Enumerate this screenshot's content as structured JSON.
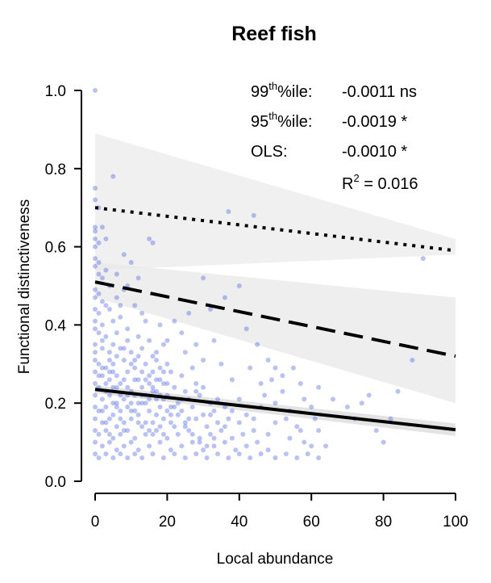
{
  "chart_data": {
    "type": "scatter",
    "title": "Reef fish",
    "xlabel": "Local abundance",
    "ylabel": "Functional distinctiveness",
    "xlim": [
      0,
      100
    ],
    "ylim": [
      0,
      1.0
    ],
    "x_ticks": [
      0,
      20,
      40,
      60,
      80,
      100
    ],
    "y_ticks": [
      "0.0",
      "0.2",
      "0.4",
      "0.6",
      "0.8",
      "1.0"
    ],
    "grid": false,
    "point_color": "#3a4fe0",
    "fit_lines": [
      {
        "name": "99th percentile",
        "style": "dotted",
        "x": [
          0,
          100
        ],
        "y": [
          0.7,
          0.59
        ],
        "band": {
          "x": [
            0,
            100
          ],
          "upper": [
            0.89,
            0.62
          ],
          "lower": [
            0.54,
            0.58
          ]
        }
      },
      {
        "name": "95th percentile",
        "style": "dashed",
        "x": [
          0,
          100
        ],
        "y": [
          0.51,
          0.32
        ],
        "band": {
          "x": [
            0,
            100
          ],
          "upper": [
            0.56,
            0.47
          ],
          "lower": [
            0.47,
            0.2
          ]
        }
      },
      {
        "name": "OLS",
        "style": "solid",
        "x": [
          0,
          100
        ],
        "y": [
          0.235,
          0.132
        ],
        "band": {
          "x": [
            0,
            100
          ],
          "upper": [
            0.245,
            0.148
          ],
          "lower": [
            0.225,
            0.116
          ]
        }
      }
    ],
    "annotations": {
      "p99": {
        "label_base": "99",
        "label_sup": "th",
        "label_rest": "%ile:",
        "value": "-0.0011 ns"
      },
      "p95": {
        "label_base": "95",
        "label_sup": "th",
        "label_rest": "%ile:",
        "value": "-0.0019 *"
      },
      "ols": {
        "label": "OLS:",
        "value": "-0.0010 *"
      },
      "r2": {
        "base": "R",
        "sup": "2",
        "rest": " = 0.016"
      }
    },
    "points": [
      [
        0,
        1.0
      ],
      [
        0,
        0.75
      ],
      [
        0,
        0.72
      ],
      [
        1,
        0.7
      ],
      [
        0,
        0.65
      ],
      [
        0,
        0.64
      ],
      [
        2,
        0.65
      ],
      [
        0,
        0.62
      ],
      [
        1,
        0.61
      ],
      [
        0,
        0.6
      ],
      [
        3,
        0.62
      ],
      [
        0,
        0.57
      ],
      [
        0,
        0.55
      ],
      [
        1,
        0.56
      ],
      [
        5,
        0.78
      ],
      [
        2,
        0.52
      ],
      [
        4,
        0.5
      ],
      [
        0,
        0.49
      ],
      [
        1,
        0.48
      ],
      [
        0,
        0.47
      ],
      [
        2,
        0.46
      ],
      [
        3,
        0.45
      ],
      [
        0,
        0.44
      ],
      [
        1,
        0.43
      ],
      [
        4,
        0.44
      ],
      [
        6,
        0.47
      ],
      [
        8,
        0.49
      ],
      [
        0,
        0.41
      ],
      [
        2,
        0.4
      ],
      [
        5,
        0.41
      ],
      [
        8,
        0.58
      ],
      [
        10,
        0.56
      ],
      [
        15,
        0.62
      ],
      [
        16,
        0.61
      ],
      [
        12,
        0.52
      ],
      [
        9,
        0.5
      ],
      [
        7,
        0.45
      ],
      [
        11,
        0.45
      ],
      [
        13,
        0.43
      ],
      [
        14,
        0.41
      ],
      [
        0,
        0.39
      ],
      [
        1,
        0.38
      ],
      [
        3,
        0.37
      ],
      [
        6,
        0.38
      ],
      [
        9,
        0.39
      ],
      [
        12,
        0.37
      ],
      [
        15,
        0.36
      ],
      [
        0,
        0.35
      ],
      [
        2,
        0.34
      ],
      [
        4,
        0.33
      ],
      [
        7,
        0.34
      ],
      [
        10,
        0.33
      ],
      [
        13,
        0.34
      ],
      [
        16,
        0.32
      ],
      [
        19,
        0.35
      ],
      [
        0,
        0.31
      ],
      [
        1,
        0.3
      ],
      [
        3,
        0.29
      ],
      [
        5,
        0.3
      ],
      [
        8,
        0.31
      ],
      [
        11,
        0.29
      ],
      [
        14,
        0.3
      ],
      [
        17,
        0.31
      ],
      [
        20,
        0.3
      ],
      [
        0,
        0.28
      ],
      [
        2,
        0.27
      ],
      [
        4,
        0.26
      ],
      [
        6,
        0.27
      ],
      [
        9,
        0.28
      ],
      [
        12,
        0.26
      ],
      [
        15,
        0.27
      ],
      [
        18,
        0.26
      ],
      [
        21,
        0.28
      ],
      [
        24,
        0.27
      ],
      [
        0,
        0.25
      ],
      [
        1,
        0.24
      ],
      [
        3,
        0.23
      ],
      [
        5,
        0.24
      ],
      [
        7,
        0.25
      ],
      [
        10,
        0.23
      ],
      [
        13,
        0.24
      ],
      [
        16,
        0.23
      ],
      [
        19,
        0.25
      ],
      [
        22,
        0.24
      ],
      [
        25,
        0.23
      ],
      [
        28,
        0.25
      ],
      [
        0,
        0.22
      ],
      [
        2,
        0.21
      ],
      [
        4,
        0.22
      ],
      [
        6,
        0.2
      ],
      [
        8,
        0.21
      ],
      [
        11,
        0.22
      ],
      [
        14,
        0.2
      ],
      [
        17,
        0.21
      ],
      [
        20,
        0.22
      ],
      [
        23,
        0.2
      ],
      [
        26,
        0.21
      ],
      [
        29,
        0.22
      ],
      [
        32,
        0.2
      ],
      [
        0,
        0.19
      ],
      [
        1,
        0.18
      ],
      [
        3,
        0.19
      ],
      [
        5,
        0.17
      ],
      [
        7,
        0.18
      ],
      [
        9,
        0.19
      ],
      [
        12,
        0.17
      ],
      [
        15,
        0.18
      ],
      [
        18,
        0.19
      ],
      [
        21,
        0.17
      ],
      [
        24,
        0.18
      ],
      [
        27,
        0.19
      ],
      [
        30,
        0.17
      ],
      [
        33,
        0.18
      ],
      [
        36,
        0.19
      ],
      [
        0,
        0.16
      ],
      [
        2,
        0.15
      ],
      [
        4,
        0.16
      ],
      [
        6,
        0.14
      ],
      [
        8,
        0.15
      ],
      [
        10,
        0.16
      ],
      [
        13,
        0.14
      ],
      [
        16,
        0.15
      ],
      [
        19,
        0.16
      ],
      [
        22,
        0.14
      ],
      [
        25,
        0.15
      ],
      [
        28,
        0.16
      ],
      [
        31,
        0.14
      ],
      [
        34,
        0.15
      ],
      [
        37,
        0.16
      ],
      [
        40,
        0.15
      ],
      [
        0,
        0.13
      ],
      [
        1,
        0.12
      ],
      [
        3,
        0.13
      ],
      [
        5,
        0.11
      ],
      [
        7,
        0.12
      ],
      [
        9,
        0.13
      ],
      [
        11,
        0.11
      ],
      [
        14,
        0.12
      ],
      [
        17,
        0.13
      ],
      [
        20,
        0.11
      ],
      [
        23,
        0.12
      ],
      [
        26,
        0.13
      ],
      [
        29,
        0.11
      ],
      [
        32,
        0.12
      ],
      [
        35,
        0.13
      ],
      [
        38,
        0.11
      ],
      [
        41,
        0.12
      ],
      [
        44,
        0.13
      ],
      [
        0,
        0.1
      ],
      [
        2,
        0.09
      ],
      [
        4,
        0.1
      ],
      [
        6,
        0.08
      ],
      [
        8,
        0.09
      ],
      [
        10,
        0.1
      ],
      [
        12,
        0.08
      ],
      [
        15,
        0.09
      ],
      [
        18,
        0.1
      ],
      [
        21,
        0.08
      ],
      [
        24,
        0.09
      ],
      [
        27,
        0.1
      ],
      [
        30,
        0.08
      ],
      [
        33,
        0.09
      ],
      [
        36,
        0.1
      ],
      [
        39,
        0.08
      ],
      [
        42,
        0.09
      ],
      [
        45,
        0.1
      ],
      [
        48,
        0.08
      ],
      [
        0,
        0.07
      ],
      [
        1,
        0.06
      ],
      [
        3,
        0.07
      ],
      [
        5,
        0.06
      ],
      [
        7,
        0.07
      ],
      [
        9,
        0.06
      ],
      [
        11,
        0.07
      ],
      [
        13,
        0.06
      ],
      [
        16,
        0.07
      ],
      [
        19,
        0.06
      ],
      [
        22,
        0.07
      ],
      [
        25,
        0.06
      ],
      [
        28,
        0.07
      ],
      [
        31,
        0.06
      ],
      [
        34,
        0.07
      ],
      [
        37,
        0.06
      ],
      [
        40,
        0.07
      ],
      [
        43,
        0.06
      ],
      [
        46,
        0.07
      ],
      [
        50,
        0.06
      ],
      [
        53,
        0.07
      ],
      [
        56,
        0.06
      ],
      [
        59,
        0.07
      ],
      [
        62,
        0.06
      ],
      [
        2,
        0.29
      ],
      [
        4,
        0.31
      ],
      [
        6,
        0.24
      ],
      [
        8,
        0.26
      ],
      [
        10,
        0.18
      ],
      [
        12,
        0.2
      ],
      [
        14,
        0.15
      ],
      [
        16,
        0.28
      ],
      [
        18,
        0.22
      ],
      [
        20,
        0.25
      ],
      [
        22,
        0.19
      ],
      [
        24,
        0.21
      ],
      [
        26,
        0.16
      ],
      [
        28,
        0.23
      ],
      [
        30,
        0.24
      ],
      [
        32,
        0.17
      ],
      [
        34,
        0.21
      ],
      [
        36,
        0.14
      ],
      [
        38,
        0.18
      ],
      [
        40,
        0.21
      ],
      [
        42,
        0.17
      ],
      [
        44,
        0.16
      ],
      [
        46,
        0.19
      ],
      [
        48,
        0.12
      ],
      [
        50,
        0.15
      ],
      [
        52,
        0.23
      ],
      [
        54,
        0.11
      ],
      [
        56,
        0.14
      ],
      [
        58,
        0.1
      ],
      [
        60,
        0.09
      ],
      [
        62,
        0.13
      ],
      [
        64,
        0.09
      ],
      [
        66,
        0.21
      ],
      [
        70,
        0.19
      ],
      [
        72,
        0.16
      ],
      [
        74,
        0.2
      ],
      [
        76,
        0.22
      ],
      [
        78,
        0.13
      ],
      [
        80,
        0.1
      ],
      [
        82,
        0.16
      ],
      [
        84,
        0.23
      ],
      [
        88,
        0.31
      ],
      [
        91,
        0.57
      ],
      [
        22,
        0.41
      ],
      [
        26,
        0.43
      ],
      [
        30,
        0.52
      ],
      [
        32,
        0.44
      ],
      [
        36,
        0.47
      ],
      [
        40,
        0.5
      ],
      [
        42,
        0.39
      ],
      [
        45,
        0.35
      ],
      [
        48,
        0.31
      ],
      [
        50,
        0.29
      ],
      [
        52,
        0.27
      ],
      [
        55,
        0.29
      ],
      [
        57,
        0.25
      ],
      [
        28,
        0.35
      ],
      [
        33,
        0.36
      ],
      [
        25,
        0.33
      ],
      [
        37,
        0.69
      ],
      [
        44,
        0.68
      ],
      [
        38,
        0.26
      ],
      [
        35,
        0.3
      ],
      [
        43,
        0.29
      ],
      [
        46,
        0.25
      ],
      [
        30,
        0.31
      ],
      [
        27,
        0.29
      ],
      [
        24,
        0.38
      ],
      [
        20,
        0.36
      ],
      [
        18,
        0.4
      ],
      [
        17,
        0.33
      ],
      [
        6,
        0.53
      ],
      [
        3,
        0.54
      ],
      [
        1,
        0.53
      ],
      [
        7,
        0.42
      ],
      [
        9,
        0.36
      ],
      [
        5,
        0.35
      ],
      [
        11,
        0.31
      ],
      [
        13,
        0.28
      ],
      [
        15,
        0.25
      ],
      [
        17,
        0.23
      ],
      [
        19,
        0.21
      ],
      [
        21,
        0.19
      ],
      [
        23,
        0.17
      ],
      [
        25,
        0.14
      ],
      [
        27,
        0.12
      ],
      [
        29,
        0.1
      ],
      [
        31,
        0.09
      ],
      [
        33,
        0.11
      ],
      [
        3,
        0.15
      ],
      [
        5,
        0.2
      ],
      [
        7,
        0.16
      ],
      [
        9,
        0.22
      ],
      [
        11,
        0.18
      ],
      [
        13,
        0.2
      ],
      [
        15,
        0.13
      ],
      [
        17,
        0.17
      ],
      [
        19,
        0.12
      ],
      [
        21,
        0.15
      ],
      [
        2,
        0.18
      ],
      [
        4,
        0.12
      ],
      [
        6,
        0.19
      ],
      [
        8,
        0.13
      ],
      [
        10,
        0.2
      ],
      [
        12,
        0.15
      ],
      [
        14,
        0.22
      ],
      [
        16,
        0.12
      ],
      [
        18,
        0.14
      ],
      [
        20,
        0.18
      ],
      [
        1,
        0.27
      ],
      [
        3,
        0.25
      ],
      [
        5,
        0.28
      ],
      [
        7,
        0.22
      ],
      [
        9,
        0.24
      ],
      [
        11,
        0.26
      ],
      [
        13,
        0.22
      ],
      [
        15,
        0.21
      ],
      [
        17,
        0.26
      ],
      [
        19,
        0.28
      ],
      [
        0,
        0.33
      ],
      [
        2,
        0.36
      ],
      [
        4,
        0.28
      ],
      [
        6,
        0.32
      ],
      [
        8,
        0.34
      ],
      [
        10,
        0.3
      ],
      [
        12,
        0.32
      ],
      [
        14,
        0.26
      ],
      [
        16,
        0.24
      ],
      [
        18,
        0.29
      ],
      [
        54,
        0.18
      ],
      [
        58,
        0.21
      ],
      [
        60,
        0.19
      ],
      [
        62,
        0.24
      ],
      [
        50,
        0.2
      ],
      [
        47,
        0.22
      ],
      [
        49,
        0.26
      ],
      [
        53,
        0.16
      ],
      [
        57,
        0.13
      ],
      [
        61,
        0.16
      ]
    ]
  }
}
